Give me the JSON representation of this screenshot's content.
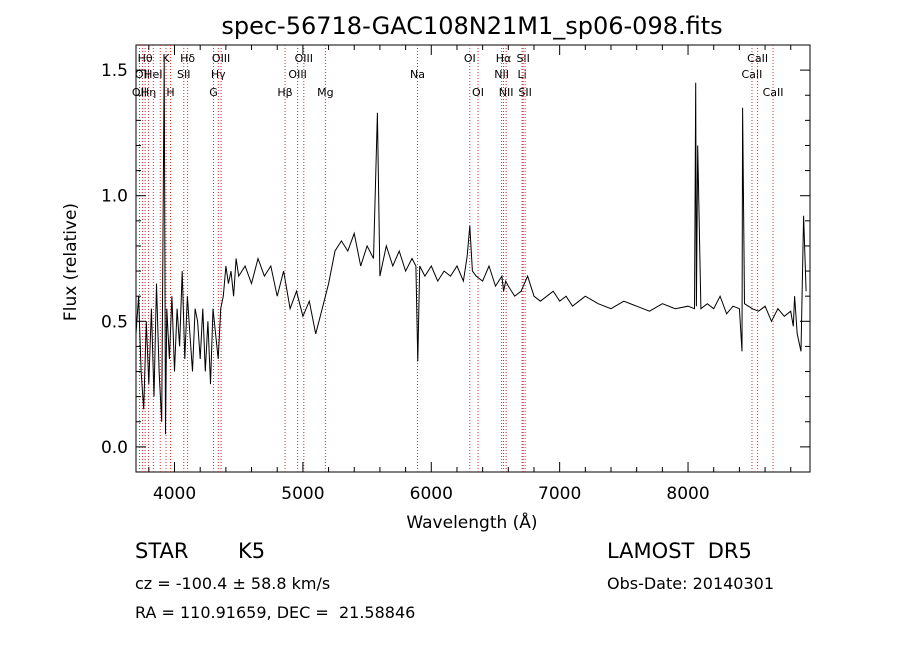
{
  "chart_data": {
    "type": "line",
    "title": "spec-56718-GAC108N21M1_sp06-098.fits",
    "xlabel": "Wavelength (Å)",
    "ylabel": "Flux (relative)",
    "xlim": [
      3700,
      8950
    ],
    "ylim": [
      -0.1,
      1.6
    ],
    "xticks": [
      4000,
      5000,
      6000,
      7000,
      8000
    ],
    "yticks": [
      0.0,
      0.5,
      1.0,
      1.5
    ],
    "xtick_labels": [
      "4000",
      "5000",
      "6000",
      "7000",
      "8000"
    ],
    "ytick_labels": [
      "0.0",
      "0.5",
      "1.0",
      "1.5"
    ],
    "line_color": "#000000",
    "marker_color": "#c83232",
    "series": [
      {
        "x": [
          3700,
          3720,
          3740,
          3760,
          3780,
          3800,
          3820,
          3840,
          3860,
          3880,
          3900,
          3920,
          3930,
          3940,
          3960,
          3980,
          4000,
          4020,
          4040,
          4060,
          4080,
          4100,
          4120,
          4140,
          4160,
          4180,
          4200,
          4220,
          4240,
          4260,
          4280,
          4300,
          4320,
          4340,
          4360,
          4380,
          4400,
          4420,
          4440,
          4460,
          4480,
          4500,
          4550,
          4600,
          4650,
          4700,
          4750,
          4800,
          4850,
          4900,
          4950,
          5000,
          5050,
          5100,
          5150,
          5200,
          5250,
          5300,
          5350,
          5400,
          5450,
          5500,
          5550,
          5580,
          5600,
          5650,
          5700,
          5750,
          5800,
          5850,
          5880,
          5895,
          5910,
          5950,
          6000,
          6050,
          6100,
          6150,
          6200,
          6250,
          6280,
          6300,
          6320,
          6350,
          6400,
          6450,
          6500,
          6550,
          6563,
          6580,
          6600,
          6650,
          6700,
          6750,
          6800,
          6850,
          6900,
          6950,
          7000,
          7050,
          7100,
          7150,
          7200,
          7300,
          7400,
          7500,
          7600,
          7700,
          7800,
          7900,
          8000,
          8050,
          8060,
          8065,
          8075,
          8100,
          8150,
          8200,
          8250,
          8300,
          8350,
          8400,
          8420,
          8425,
          8440,
          8500,
          8550,
          8600,
          8650,
          8700,
          8750,
          8800,
          8820,
          8830,
          8850,
          8880,
          8900,
          8920
        ],
        "y": [
          0.45,
          0.6,
          0.3,
          0.15,
          0.5,
          0.25,
          0.55,
          0.2,
          0.65,
          0.3,
          0.1,
          1.55,
          0.05,
          0.55,
          0.35,
          0.6,
          0.3,
          0.55,
          0.4,
          0.7,
          0.35,
          0.6,
          0.45,
          0.3,
          0.55,
          0.5,
          0.35,
          0.55,
          0.3,
          0.5,
          0.25,
          0.55,
          0.45,
          0.35,
          0.55,
          0.6,
          0.72,
          0.65,
          0.7,
          0.6,
          0.75,
          0.68,
          0.72,
          0.65,
          0.75,
          0.68,
          0.72,
          0.6,
          0.7,
          0.55,
          0.62,
          0.52,
          0.58,
          0.45,
          0.55,
          0.65,
          0.78,
          0.82,
          0.78,
          0.85,
          0.72,
          0.8,
          0.75,
          1.33,
          0.68,
          0.8,
          0.72,
          0.78,
          0.7,
          0.75,
          0.72,
          0.34,
          0.72,
          0.68,
          0.72,
          0.66,
          0.7,
          0.68,
          0.72,
          0.66,
          0.76,
          0.88,
          0.7,
          0.68,
          0.66,
          0.72,
          0.64,
          0.68,
          0.62,
          0.66,
          0.64,
          0.6,
          0.62,
          0.68,
          0.6,
          0.58,
          0.6,
          0.62,
          0.58,
          0.6,
          0.56,
          0.58,
          0.6,
          0.57,
          0.55,
          0.58,
          0.56,
          0.54,
          0.57,
          0.55,
          0.56,
          0.55,
          1.45,
          0.56,
          1.2,
          0.55,
          0.57,
          0.55,
          0.6,
          0.53,
          0.56,
          0.55,
          0.38,
          1.35,
          0.57,
          0.55,
          0.54,
          0.56,
          0.5,
          0.55,
          0.52,
          0.54,
          0.48,
          0.6,
          0.45,
          0.38,
          0.92,
          0.62
        ]
      }
    ],
    "line_markers": [
      {
        "wl": 3727,
        "label": "OII",
        "row": 2
      },
      {
        "wl": 3750,
        "label": "OII",
        "row": 1
      },
      {
        "wl": 3771,
        "label": "Hθ",
        "row": 0
      },
      {
        "wl": 3798,
        "label": "Hη",
        "row": 2
      },
      {
        "wl": 3835,
        "label": "HeI",
        "row": 1
      },
      {
        "wl": 3889,
        "label": "",
        "row": 0
      },
      {
        "wl": 3934,
        "label": "K",
        "row": 0
      },
      {
        "wl": 3969,
        "label": "H",
        "row": 2
      },
      {
        "wl": 4072,
        "label": "SII",
        "row": 1
      },
      {
        "wl": 4102,
        "label": "Hδ",
        "row": 0
      },
      {
        "wl": 4304,
        "label": "G",
        "row": 2
      },
      {
        "wl": 4341,
        "label": "Hγ",
        "row": 1
      },
      {
        "wl": 4363,
        "label": "OIII",
        "row": 0
      },
      {
        "wl": 4861,
        "label": "Hβ",
        "row": 2
      },
      {
        "wl": 4959,
        "label": "OIII",
        "row": 1
      },
      {
        "wl": 5007,
        "label": "OIII",
        "row": 0
      },
      {
        "wl": 5175,
        "label": "Mg",
        "row": 2
      },
      {
        "wl": 5893,
        "label": "Na",
        "row": 1
      },
      {
        "wl": 6300,
        "label": "OI",
        "row": 0
      },
      {
        "wl": 6364,
        "label": "OI",
        "row": 2
      },
      {
        "wl": 6548,
        "label": "NII",
        "row": 1
      },
      {
        "wl": 6563,
        "label": "Hα",
        "row": 0
      },
      {
        "wl": 6583,
        "label": "NII",
        "row": 2
      },
      {
        "wl": 6707,
        "label": "Li",
        "row": 1
      },
      {
        "wl": 6716,
        "label": "SII",
        "row": 0
      },
      {
        "wl": 6731,
        "label": "SII",
        "row": 2
      },
      {
        "wl": 8498,
        "label": "CaII",
        "row": 1
      },
      {
        "wl": 8542,
        "label": "CaII",
        "row": 0
      },
      {
        "wl": 8662,
        "label": "CaII",
        "row": 2
      }
    ]
  },
  "info": {
    "object_class": "STAR",
    "subclass": "K5",
    "survey": "LAMOST  DR5",
    "velocity": "cz = -100.4 ± 58.8 km/s",
    "obs_date": "Obs-Date: 20140301",
    "coords": "RA = 110.91659, DEC =  21.58846"
  }
}
